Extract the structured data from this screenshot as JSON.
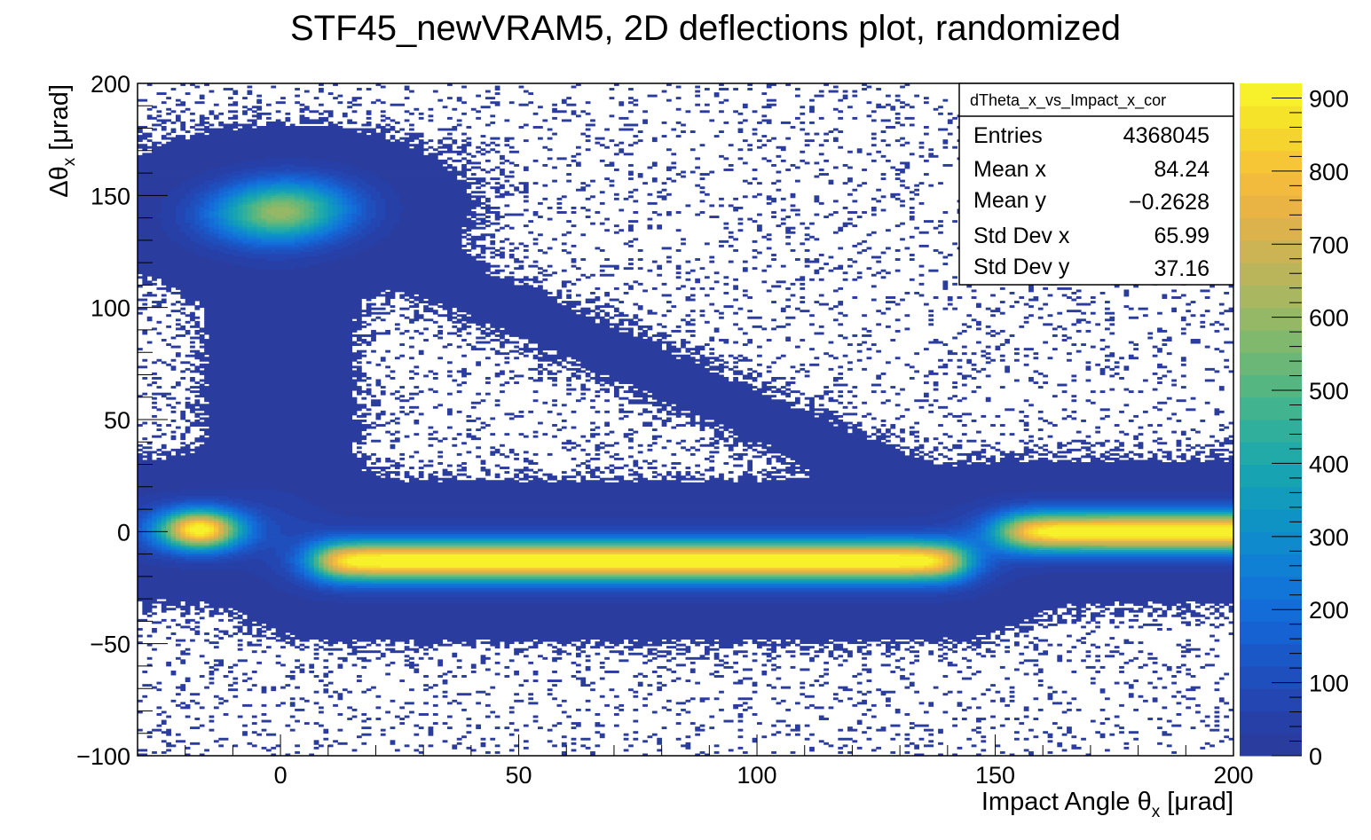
{
  "chart_data": {
    "type": "heatmap",
    "title": "STF45_newVRAM5, 2D deflections plot, randomized",
    "xlabel": "Impact Angle θ",
    "xlabel_sub": "x",
    "xlabel_unit": " [μrad]",
    "ylabel": "Δθ",
    "ylabel_sub": "x",
    "ylabel_unit": " [μrad]",
    "xlim": [
      -30,
      200
    ],
    "ylim": [
      -100,
      200
    ],
    "zlim": [
      0,
      920
    ],
    "x_ticks": [
      {
        "value": 0,
        "label": "0"
      },
      {
        "value": 50,
        "label": "50"
      },
      {
        "value": 100,
        "label": "100"
      },
      {
        "value": 150,
        "label": "150"
      },
      {
        "value": 200,
        "label": "200"
      }
    ],
    "y_ticks": [
      {
        "value": -100,
        "label": "−100"
      },
      {
        "value": -50,
        "label": "−50"
      },
      {
        "value": 0,
        "label": "0"
      },
      {
        "value": 50,
        "label": "50"
      },
      {
        "value": 100,
        "label": "100"
      },
      {
        "value": 150,
        "label": "150"
      },
      {
        "value": 200,
        "label": "200"
      }
    ],
    "z_ticks": [
      {
        "value": 0,
        "label": "0"
      },
      {
        "value": 100,
        "label": "100"
      },
      {
        "value": 200,
        "label": "200"
      },
      {
        "value": 300,
        "label": "300"
      },
      {
        "value": 400,
        "label": "400"
      },
      {
        "value": 500,
        "label": "500"
      },
      {
        "value": 600,
        "label": "600"
      },
      {
        "value": 700,
        "label": "700"
      },
      {
        "value": 800,
        "label": "800"
      },
      {
        "value": 900,
        "label": "900"
      }
    ],
    "palette": [
      "#2a3d9e",
      "#2640a8",
      "#2346b2",
      "#1f4fbd",
      "#1b58c7",
      "#1762d2",
      "#146cd9",
      "#1276d8",
      "#1080d4",
      "#0e8acd",
      "#0f93c5",
      "#129bbc",
      "#17a3b2",
      "#21aaa8",
      "#30af9c",
      "#42b38f",
      "#56b682",
      "#6bb777",
      "#80b86d",
      "#94b866",
      "#a8b760",
      "#bab55a",
      "#ccb354",
      "#dcb24c",
      "#e9b444",
      "#f2bb3d",
      "#f6c636",
      "#f6d42f",
      "#f5e329",
      "#f6f12a"
    ],
    "components": [
      {
        "name": "left-band-core",
        "cx": -17,
        "cy": 1,
        "sx": 6,
        "sy": 6,
        "peak": 880
      },
      {
        "name": "middle-band-core",
        "cx": 75,
        "cy": -13,
        "sx": 50,
        "sy": 6,
        "peak": 900
      },
      {
        "name": "right-band-core",
        "cx": 178,
        "cy": 0,
        "sx": 14,
        "sy": 6,
        "peak": 900
      },
      {
        "name": "upper-spot",
        "cx": 0,
        "cy": 143,
        "sx": 9,
        "sy": 11,
        "peak": 560
      }
    ],
    "stats_box": {
      "title": "dTheta_x_vs_Impact_x_cor",
      "rows": [
        {
          "label": "Entries",
          "value": "4368045"
        },
        {
          "label": "Mean x",
          "value": "84.24"
        },
        {
          "label": "Mean y",
          "value": "−0.2628"
        },
        {
          "label": "Std Dev x",
          "value": "65.99"
        },
        {
          "label": "Std Dev y",
          "value": "37.16"
        }
      ],
      "position": "top-right"
    },
    "grid": false
  }
}
